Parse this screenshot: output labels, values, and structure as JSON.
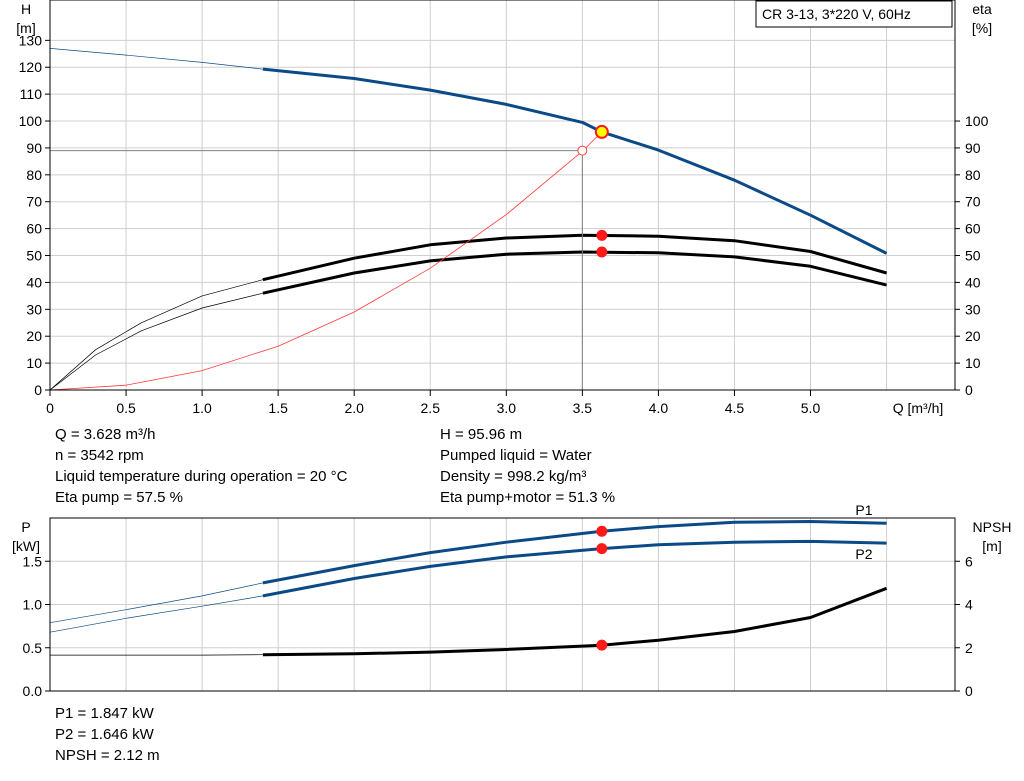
{
  "chart_data": [
    {
      "type": "line",
      "title": "CR 3-13, 3*220 V, 60Hz",
      "xlabel": "Q [m³/h]",
      "ylabel": "H\n[m]",
      "ylabel_right": "eta\n[%]",
      "xlim": [
        0,
        5.95
      ],
      "ylim": [
        0,
        145
      ],
      "y2lim": [
        0,
        145
      ],
      "x_ticks": [
        "0",
        "0.5",
        "1.0",
        "1.5",
        "2.0",
        "2.5",
        "3.0",
        "3.5",
        "4.0",
        "4.5",
        "5.0"
      ],
      "y_ticks": [
        "0",
        "10",
        "20",
        "30",
        "40",
        "50",
        "60",
        "70",
        "80",
        "90",
        "100",
        "110",
        "120",
        "130"
      ],
      "y2_ticks": [
        "0",
        "10",
        "20",
        "30",
        "40",
        "50",
        "60",
        "70",
        "80",
        "90",
        "100"
      ],
      "grid": true,
      "colors": {
        "head": "#0b4a86",
        "efficiency": "#000000",
        "system": "#ff3b3b",
        "duty_point": "#ff1a1a",
        "duty_point_fill": "#ffff00"
      },
      "series": [
        {
          "key": "head",
          "axis": "left",
          "bold_from_x": 1.4,
          "x": [
            0,
            0.5,
            1.0,
            1.4,
            2.0,
            2.5,
            3.0,
            3.5,
            3.628,
            4.0,
            4.5,
            5.0,
            5.5
          ],
          "y": [
            127,
            124.5,
            121.8,
            119.3,
            115.8,
            111.5,
            106.2,
            99.5,
            95.96,
            89.2,
            78.0,
            65.0,
            50.8
          ]
        },
        {
          "key": "eta_pump",
          "axis": "right",
          "bold_from_x": 1.4,
          "x": [
            0,
            0.3,
            0.6,
            1.0,
            1.4,
            2.0,
            2.5,
            3.0,
            3.5,
            4.0,
            4.5,
            5.0,
            5.5
          ],
          "y": [
            0,
            15,
            25,
            35,
            41,
            49,
            54,
            56.5,
            57.5,
            57.2,
            55.5,
            51.5,
            43.5
          ]
        },
        {
          "key": "eta_pump_motor",
          "axis": "right",
          "bold_from_x": 1.4,
          "x": [
            0,
            0.3,
            0.6,
            1.0,
            1.4,
            2.0,
            2.5,
            3.0,
            3.5,
            4.0,
            4.5,
            5.0,
            5.5
          ],
          "y": [
            0,
            13,
            22,
            30.5,
            36,
            43.5,
            48,
            50.5,
            51.3,
            51.0,
            49.5,
            46.0,
            39.0
          ]
        },
        {
          "key": "system_curve",
          "axis": "left",
          "x": [
            0,
            0.5,
            1.0,
            1.5,
            2.0,
            2.5,
            3.0,
            3.5,
            3.628
          ],
          "y": [
            0,
            1.8,
            7.2,
            16.3,
            29.0,
            45.3,
            65.2,
            88.8,
            95.96
          ]
        }
      ],
      "duty_points": [
        {
          "x": 3.628,
          "y": 95.96,
          "axis": "left",
          "style": "yellow"
        },
        {
          "x": 3.628,
          "y": 57.5,
          "axis": "right",
          "style": "red"
        },
        {
          "x": 3.628,
          "y": 51.3,
          "axis": "right",
          "style": "red"
        },
        {
          "x": 3.5,
          "y": 89,
          "axis": "left",
          "style": "open"
        }
      ],
      "reference_lines": {
        "h_at": 89,
        "q_at": 3.5
      }
    },
    {
      "type": "line",
      "xlabel": "",
      "ylabel": "P\n[kW]",
      "ylabel_right": "NPSH\n[m]",
      "xlim": [
        0,
        5.95
      ],
      "ylim": [
        0,
        2.0
      ],
      "y2lim": [
        0,
        8
      ],
      "y_ticks": [
        "0.0",
        "0.5",
        "1.0",
        "1.5"
      ],
      "y2_ticks": [
        "0",
        "2",
        "4",
        "6"
      ],
      "grid": true,
      "colors": {
        "p1": "#0b4a86",
        "p2": "#0b4a86",
        "npsh": "#000000",
        "duty_point": "#ff1a1a"
      },
      "series": [
        {
          "key": "p1",
          "name": "P1",
          "axis": "left",
          "bold_from_x": 1.4,
          "x": [
            0,
            0.5,
            1.0,
            1.4,
            2.0,
            2.5,
            3.0,
            3.628,
            4.0,
            4.5,
            5.0,
            5.5
          ],
          "y": [
            0.79,
            0.94,
            1.1,
            1.25,
            1.45,
            1.6,
            1.72,
            1.847,
            1.9,
            1.95,
            1.96,
            1.94
          ]
        },
        {
          "key": "p2",
          "name": "P2",
          "axis": "left",
          "bold_from_x": 1.4,
          "x": [
            0,
            0.5,
            1.0,
            1.4,
            2.0,
            2.5,
            3.0,
            3.628,
            4.0,
            4.5,
            5.0,
            5.5
          ],
          "y": [
            0.68,
            0.84,
            0.98,
            1.1,
            1.3,
            1.44,
            1.55,
            1.646,
            1.69,
            1.72,
            1.73,
            1.71
          ]
        },
        {
          "key": "npsh",
          "axis": "right",
          "bold_from_x": 1.4,
          "x": [
            0,
            0.5,
            1.0,
            1.4,
            2.0,
            2.5,
            3.0,
            3.628,
            4.0,
            4.5,
            5.0,
            5.5
          ],
          "y": [
            1.66,
            1.66,
            1.66,
            1.68,
            1.72,
            1.8,
            1.92,
            2.12,
            2.35,
            2.75,
            3.4,
            4.75
          ]
        }
      ],
      "duty_points": [
        {
          "x": 3.628,
          "y": 1.847,
          "axis": "left",
          "style": "red"
        },
        {
          "x": 3.628,
          "y": 1.646,
          "axis": "left",
          "style": "red"
        },
        {
          "x": 3.628,
          "y": 2.12,
          "axis": "right",
          "style": "red"
        }
      ]
    }
  ],
  "upper_info": {
    "left": [
      "Q = 3.628 m³/h",
      "n = 3542 rpm",
      "Liquid temperature during operation = 20 °C",
      "Eta pump = 57.5 %"
    ],
    "right": [
      "H = 95.96 m",
      "Pumped liquid = Water",
      "Density = 998.2 kg/m³",
      "Eta pump+motor = 51.3 %"
    ]
  },
  "lower_info": [
    "P1 = 1.847 kW",
    "P2 = 1.646 kW",
    "NPSH = 2.12 m"
  ]
}
